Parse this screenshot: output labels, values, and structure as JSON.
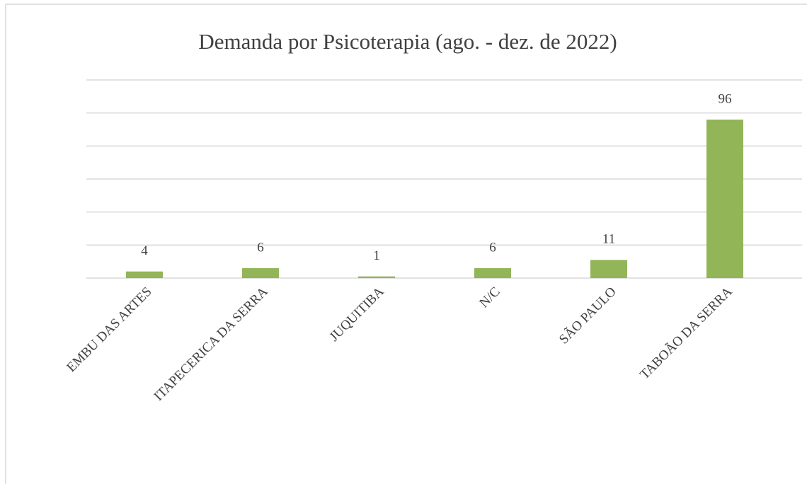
{
  "chart_data": {
    "type": "bar",
    "title": "Demanda por Psicoterapia (ago. - dez. de 2022)",
    "categories": [
      "EMBU DAS ARTES",
      "ITAPECERICA DA SERRA",
      "JUQUITIBA",
      "N/C",
      "SÃO PAULO",
      "TABOÃO DA SERRA"
    ],
    "values": [
      4,
      6,
      1,
      6,
      11,
      96
    ],
    "color": "#92b558",
    "ylim": [
      0,
      120
    ],
    "yticks": [
      0,
      20,
      40,
      60,
      80,
      100,
      120
    ],
    "grid": true,
    "data_labels": true
  }
}
